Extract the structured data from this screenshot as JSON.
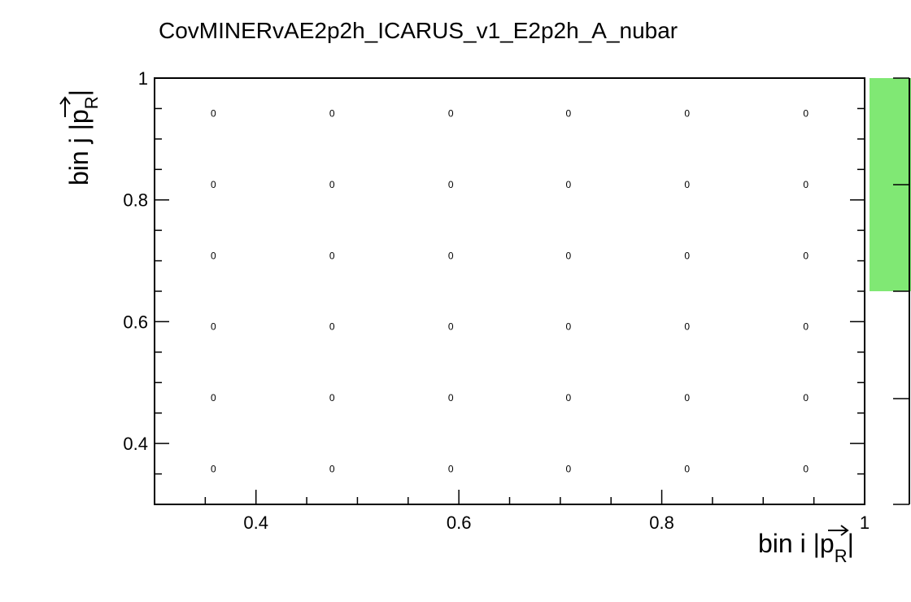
{
  "chart_data": {
    "type": "heatmap",
    "title": "CovMINERvAE2p2h_ICARUS_v1_E2p2h_A_nubar",
    "xlabel": {
      "prefix": "bin i |",
      "symbol": "p",
      "subscript": "R",
      "suffix": "|"
    },
    "ylabel": {
      "prefix": "bin j |",
      "symbol": "p",
      "subscript": "R",
      "suffix": "|"
    },
    "xlim": [
      0.3,
      1.0
    ],
    "ylim": [
      0.3,
      1.0
    ],
    "x_major_ticks": [
      0.4,
      0.6,
      0.8,
      1.0
    ],
    "x_tick_labels": [
      "0.4",
      "0.6",
      "0.8",
      "1"
    ],
    "y_major_ticks": [
      0.4,
      0.6,
      0.8,
      1.0
    ],
    "y_tick_labels": [
      "0.4",
      "0.6",
      "0.8",
      "1"
    ],
    "x_bin_centers": [
      0.358,
      0.475,
      0.592,
      0.708,
      0.825,
      0.942
    ],
    "y_bin_centers": [
      0.358,
      0.475,
      0.592,
      0.708,
      0.825,
      0.942
    ],
    "values": [
      [
        0,
        0,
        0,
        0,
        0,
        0
      ],
      [
        0,
        0,
        0,
        0,
        0,
        0
      ],
      [
        0,
        0,
        0,
        0,
        0,
        0
      ],
      [
        0,
        0,
        0,
        0,
        0,
        0
      ],
      [
        0,
        0,
        0,
        0,
        0,
        0
      ],
      [
        0,
        0,
        0,
        0,
        0,
        0
      ]
    ],
    "palette_color": "#80e874",
    "grid": false
  }
}
